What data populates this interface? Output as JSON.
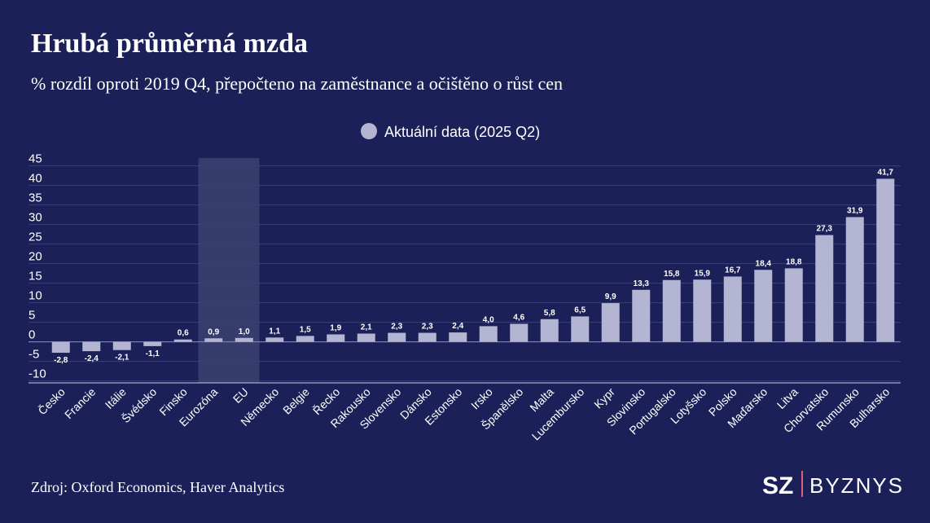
{
  "chart_data": {
    "type": "bar",
    "title": "Hrubá průměrná mzda",
    "subtitle": "% rozdíl oproti 2019 Q4, přepočteno na zaměstnance a očištěno o růst cen",
    "source": "Zdroj: Oxford Economics, Haver Analytics",
    "brand": [
      "SZ",
      "BYZNYS"
    ],
    "categories": [
      "Česko",
      "Francie",
      "Itálie",
      "Švédsko",
      "Finsko",
      "Eurozóna",
      "EU",
      "Německo",
      "Belgie",
      "Řecko",
      "Rakousko",
      "Slovensko",
      "Dánsko",
      "Estonsko",
      "Irsko",
      "Španělsko",
      "Malta",
      "Lucembursko",
      "Kypr",
      "Slovinsko",
      "Portugalsko",
      "Lotyšsko",
      "Polsko",
      "Maďarsko",
      "Litva",
      "Chorvatsko",
      "Rumunsko",
      "Bulharsko"
    ],
    "series": [
      {
        "name": "Aktuální data (2025 Q2)",
        "color": "#b3b5d2",
        "values": [
          -2.8,
          -2.4,
          -2.1,
          -1.1,
          0.6,
          0.9,
          1.0,
          1.1,
          1.5,
          1.9,
          2.1,
          2.3,
          2.3,
          2.4,
          4.0,
          4.6,
          5.8,
          6.5,
          9.9,
          13.3,
          15.8,
          15.9,
          16.7,
          18.4,
          18.8,
          27.3,
          31.9,
          41.7
        ],
        "value_labels": [
          "-2,8",
          "-2,4",
          "-2,1",
          "-1,1",
          "0,6",
          "0,9",
          "1,0",
          "1,1",
          "1,5",
          "1,9",
          "2,1",
          "2,3",
          "2,3",
          "2,4",
          "4,0",
          "4,6",
          "5,8",
          "6,5",
          "9,9",
          "13,3",
          "15,8",
          "15,9",
          "16,7",
          "18,4",
          "18,8",
          "27,3",
          "31,9",
          "41,7"
        ]
      }
    ],
    "highlight": [
      "Eurozóna",
      "EU"
    ],
    "ylim": [
      -10.5,
      47
    ],
    "yticks": [
      -10,
      -5,
      0,
      5,
      10,
      15,
      20,
      25,
      30,
      35,
      40,
      45
    ],
    "grid": true
  }
}
